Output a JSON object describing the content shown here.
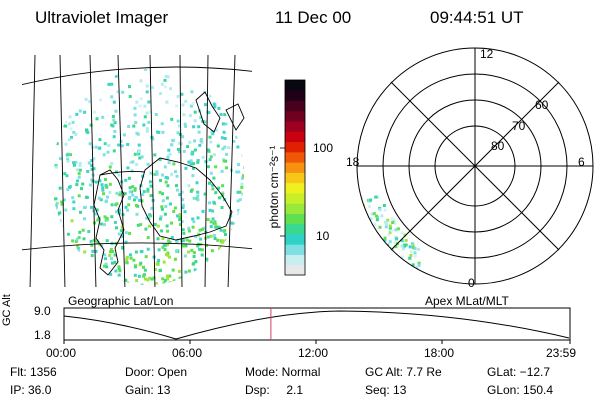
{
  "header": {
    "instrument": "Ultraviolet Imager",
    "date": "11 Dec 00",
    "time": "09:44:51 UT"
  },
  "colorbar": {
    "label": "photon cm⁻²s⁻¹",
    "ticks": [
      "100",
      "10"
    ],
    "colors": [
      "#e8e8e8",
      "#c8eef0",
      "#7fe0e4",
      "#30d2c8",
      "#38d890",
      "#60e050",
      "#9ae83c",
      "#c8f028",
      "#eef020",
      "#f8c818",
      "#f89010",
      "#f05808",
      "#e02000",
      "#c80010",
      "#a00020",
      "#700020",
      "#48001c",
      "#200018",
      "#080810"
    ]
  },
  "geo_map": {
    "caption": "Geographic Lat/Lon"
  },
  "polar_plot": {
    "caption": "Apex MLat/MLT",
    "mlt_labels": {
      "top": "12",
      "left": "18",
      "right": "6",
      "bottom": "0"
    },
    "lat_labels": [
      "60",
      "70",
      "80"
    ]
  },
  "altitude_plot": {
    "ylabel": "GC Alt",
    "ymax": "9.0",
    "ymin": "1.8",
    "x_ticks": [
      "00:00",
      "06:00",
      "12:00",
      "18:00",
      "23:59"
    ],
    "current_fraction": 0.4089
  },
  "info": {
    "flt": "Flt: 1356",
    "ip": "IP: 36.0",
    "door": "Door: Open",
    "gain": "Gain: 13",
    "mode": "Mode: Normal",
    "dsp": "Dsp:     2.1",
    "gcalt": "GC Alt: 7.7 Re",
    "seq": "Seq: 13",
    "glat": "GLat: −12.7",
    "glon": "GLon: 150.4"
  }
}
